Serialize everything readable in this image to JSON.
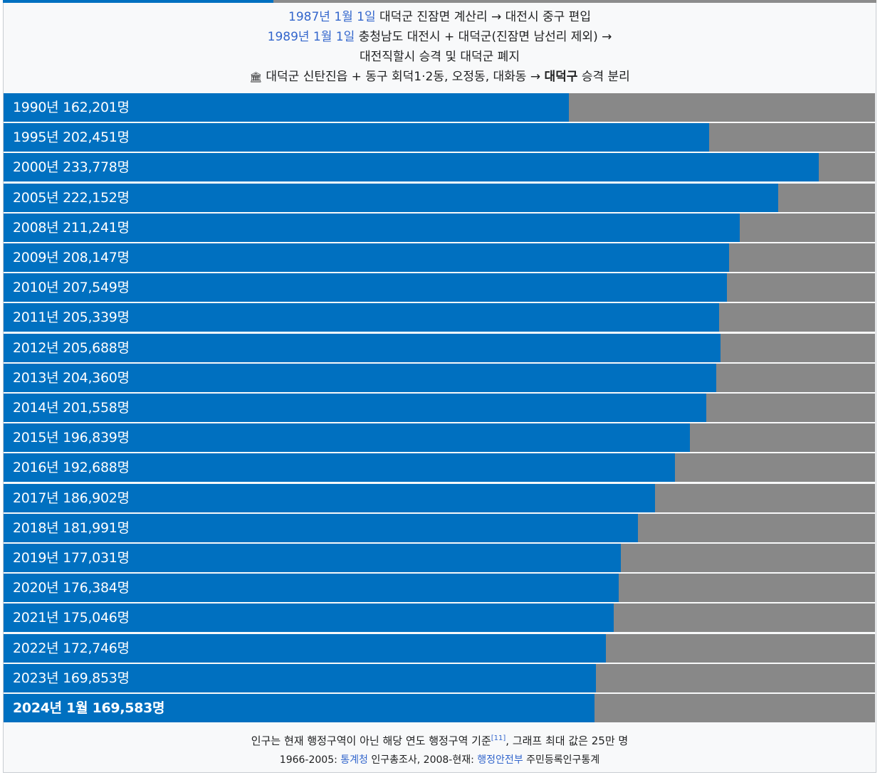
{
  "header": {
    "line1_date": "1987년 1월 1일",
    "line1_text": "대덕군 진잠면 계산리 → 대전시 중구 편입",
    "line2_date": "1989년 1월 1일",
    "line2_text": "충청남도 대전시 + 대덕군(진잠면 남선리 제외) →",
    "line3_text": "대전직할시 승격 및 대덕군 폐지",
    "line4_icon": "government-building-icon",
    "line4_text_a": "대덕군 신탄진읍 + 동구 회덕1·2동, 오정동, 대화동 →",
    "line4_bold": "대덕구",
    "line4_text_b": "승격 분리"
  },
  "colors": {
    "bar": "#0070c0",
    "remainder": "#888888",
    "link": "#3366cc"
  },
  "chart_data": {
    "type": "bar",
    "orientation": "horizontal",
    "xlim": [
      0,
      250000
    ],
    "unit": "명",
    "categories": [
      "1990년",
      "1995년",
      "2000년",
      "2005년",
      "2008년",
      "2009년",
      "2010년",
      "2011년",
      "2012년",
      "2013년",
      "2014년",
      "2015년",
      "2016년",
      "2017년",
      "2018년",
      "2019년",
      "2020년",
      "2021년",
      "2022년",
      "2023년",
      "2024년 1월"
    ],
    "values": [
      162201,
      202451,
      233778,
      222152,
      211241,
      208147,
      207549,
      205339,
      205688,
      204360,
      201558,
      196839,
      192688,
      186902,
      181991,
      177031,
      176384,
      175046,
      172746,
      169853,
      169583
    ],
    "labels": [
      "1990년 162,201명",
      "1995년 202,451명",
      "2000년 233,778명",
      "2005년 222,152명",
      "2008년 211,241명",
      "2009년 208,147명",
      "2010년 207,549명",
      "2011년 205,339명",
      "2012년 205,688명",
      "2013년 204,360명",
      "2014년 201,558명",
      "2015년 196,839명",
      "2016년 192,688명",
      "2017년 186,902명",
      "2018년 181,991명",
      "2019년 177,031명",
      "2020년 176,384명",
      "2021년 175,046명",
      "2022년 172,746명",
      "2023년 169,853명",
      "2024년 1월 169,583명"
    ],
    "bold_last": true,
    "top_progress": 0.31
  },
  "footer": {
    "line1_text": "인구는 현재 행정구역이 아닌 해당 연도 행정구역 기준",
    "line1_ref": "[11]",
    "line1_text_b": ", 그래프 최대 값은 25만 명",
    "line2_a": "1966-2005:",
    "line2_link1": "통계청",
    "line2_b": "인구총조사, 2008-현재:",
    "line2_link2": "행정안전부",
    "line2_c": "주민등록인구통계"
  }
}
